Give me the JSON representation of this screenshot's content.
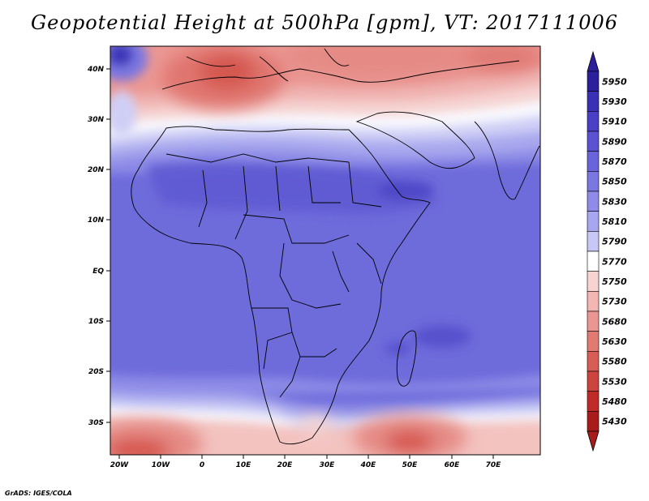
{
  "title": "Geopotential Height at 500hPa [gpm], VT: 2017111006",
  "credit": "GrADS: IGES/COLA",
  "axes": {
    "lat_labels": [
      "40N",
      "30N",
      "20N",
      "10N",
      "EQ",
      "10S",
      "20S",
      "30S"
    ],
    "lon_labels": [
      "20W",
      "10W",
      "0",
      "10E",
      "20E",
      "30E",
      "40E",
      "50E",
      "60E",
      "70E"
    ]
  },
  "colorbar": {
    "labels": [
      "5950",
      "5930",
      "5910",
      "5890",
      "5870",
      "5850",
      "5830",
      "5810",
      "5790",
      "5770",
      "5750",
      "5730",
      "5680",
      "5630",
      "5580",
      "5530",
      "5480",
      "5430"
    ],
    "colors": [
      "#2b1f9c",
      "#3a30b4",
      "#4a40c6",
      "#5a52d2",
      "#6a64dc",
      "#7b77e2",
      "#8e8ce8",
      "#a7a6ef",
      "#c8c8f6",
      "#ffffff",
      "#f7d4d2",
      "#f2b6b3",
      "#ea9793",
      "#e27a74",
      "#d85d57",
      "#cd433d",
      "#bf2b27",
      "#a81d1b"
    ]
  },
  "colors": {
    "ocean_blue": "#6f6cdc",
    "land_blue": "#6460d6",
    "deep_red": "#d84a44"
  }
}
